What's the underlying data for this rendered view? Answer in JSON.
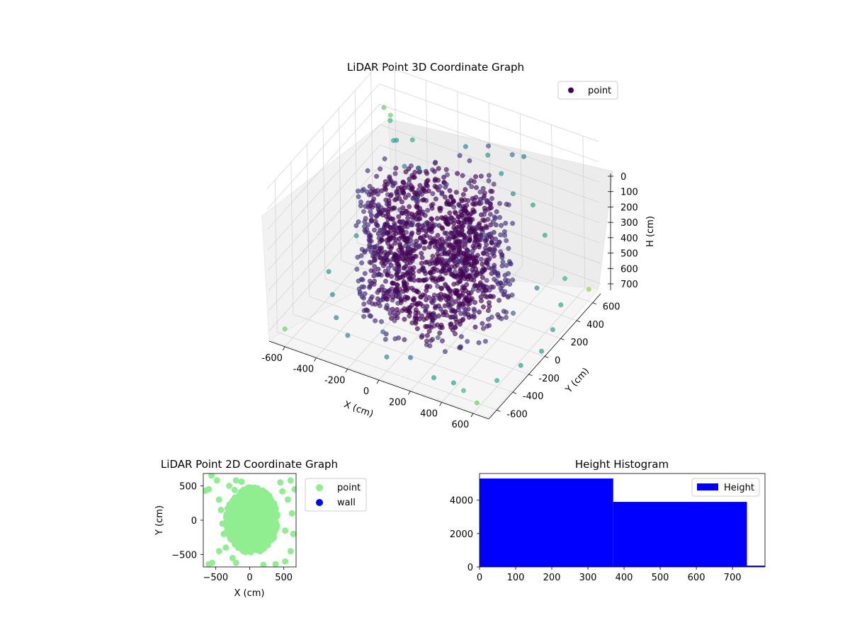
{
  "chart_data": [
    {
      "type": "scatter",
      "projection": "3d",
      "title": "LiDAR Point 3D Coordinate Graph",
      "xlabel": "X (cm)",
      "ylabel": "Y (cm)",
      "zlabel": "H (cm)",
      "xlim": [
        -700,
        700
      ],
      "ylim": [
        -700,
        700
      ],
      "zlim": [
        750,
        0
      ],
      "z_inverted": true,
      "x_ticks": [
        "-600",
        "-400",
        "-200",
        "0",
        "200",
        "400",
        "600"
      ],
      "y_ticks": [
        "-600",
        "-400",
        "-200",
        "0",
        "200",
        "400",
        "600"
      ],
      "z_ticks": [
        "0",
        "100",
        "200",
        "300",
        "400",
        "500",
        "600",
        "700"
      ],
      "colormap": "viridis",
      "grid": true,
      "legend": {
        "placement": "upper right",
        "entries": [
          {
            "label": "point",
            "color": "#440154"
          }
        ]
      },
      "series": [
        {
          "name": "point",
          "description_of_shape": "dense spiral ring of points centered near origin spanning heights ~150-700 cm, with sparse scattered outliers",
          "core_ring": {
            "center_x": 0,
            "center_y": 0,
            "radius_range": [
              150,
              450
            ],
            "h_range": [
              150,
              700
            ]
          },
          "outliers": [
            {
              "x": -620,
              "y": 600,
              "h": 150
            },
            {
              "x": -600,
              "y": 640,
              "h": 200
            },
            {
              "x": -560,
              "y": 560,
              "h": 180
            },
            {
              "x": -520,
              "y": 520,
              "h": 250
            },
            {
              "x": -480,
              "y": 480,
              "h": 220
            },
            {
              "x": -440,
              "y": 600,
              "h": 260
            },
            {
              "x": -400,
              "y": 420,
              "h": 300
            },
            {
              "x": -350,
              "y": 500,
              "h": 330
            },
            {
              "x": -300,
              "y": 350,
              "h": 400
            },
            {
              "x": -250,
              "y": 200,
              "h": 450
            },
            {
              "x": -200,
              "y": -100,
              "h": 520
            },
            {
              "x": -150,
              "y": -300,
              "h": 600
            },
            {
              "x": -100,
              "y": -450,
              "h": 650
            },
            {
              "x": 0,
              "y": -600,
              "h": 680
            },
            {
              "x": 100,
              "y": -500,
              "h": 700
            },
            {
              "x": 200,
              "y": -350,
              "h": 640
            },
            {
              "x": 300,
              "y": -600,
              "h": 700
            },
            {
              "x": 400,
              "y": -550,
              "h": 720
            },
            {
              "x": 500,
              "y": -620,
              "h": 700
            },
            {
              "x": 600,
              "y": -400,
              "h": 720
            },
            {
              "x": 650,
              "y": -200,
              "h": 720
            },
            {
              "x": 680,
              "y": 0,
              "h": 730
            },
            {
              "x": 650,
              "y": 200,
              "h": 720
            },
            {
              "x": 600,
              "y": 400,
              "h": 700
            },
            {
              "x": 550,
              "y": 550,
              "h": 650
            },
            {
              "x": 400,
              "y": 600,
              "h": 500
            },
            {
              "x": 300,
              "y": 650,
              "h": 400
            },
            {
              "x": 200,
              "y": 600,
              "h": 350
            },
            {
              "x": 100,
              "y": 650,
              "h": 300
            },
            {
              "x": 0,
              "y": 680,
              "h": 250
            },
            {
              "x": -100,
              "y": 600,
              "h": 200
            },
            {
              "x": 250,
              "y": 500,
              "h": 100
            },
            {
              "x": 350,
              "y": 450,
              "h": 60
            },
            {
              "x": 150,
              "y": 400,
              "h": 40
            },
            {
              "x": -300,
              "y": -500,
              "h": 700
            },
            {
              "x": -450,
              "y": -350,
              "h": 720
            },
            {
              "x": -550,
              "y": -200,
              "h": 700
            },
            {
              "x": -650,
              "y": -50,
              "h": 680
            },
            {
              "x": -600,
              "y": 200,
              "h": 600
            },
            {
              "x": 500,
              "y": 300,
              "h": 600
            },
            {
              "x": 450,
              "y": 100,
              "h": 650
            },
            {
              "x": -50,
              "y": 300,
              "h": 500
            },
            {
              "x": 100,
              "y": -200,
              "h": 550
            },
            {
              "x": 250,
              "y": -100,
              "h": 600
            },
            {
              "x": -200,
              "y": 100,
              "h": 450
            },
            {
              "x": 600,
              "y": -650,
              "h": 720
            },
            {
              "x": -650,
              "y": -600,
              "h": 720
            },
            {
              "x": 650,
              "y": 650,
              "h": 720
            }
          ]
        }
      ]
    },
    {
      "type": "scatter",
      "title": "LiDAR Point 2D Coordinate Graph",
      "xlabel": "X (cm)",
      "ylabel": "Y (cm)",
      "xlim": [
        -680,
        680
      ],
      "ylim": [
        -680,
        680
      ],
      "x_ticks": [
        -500,
        0,
        500
      ],
      "y_ticks": [
        -500,
        0,
        500
      ],
      "legend": {
        "placement": "outside right",
        "entries": [
          {
            "label": "point",
            "color": "#90ee90"
          },
          {
            "label": "wall",
            "color": "#0000ff"
          }
        ]
      },
      "series": [
        {
          "name": "point",
          "color": "#90ee90",
          "core_blob": {
            "center_x": 30,
            "center_y": 0,
            "radius_x": 380,
            "radius_y": 480
          },
          "outliers": [
            {
              "x": -650,
              "y": 430
            },
            {
              "x": -600,
              "y": 450
            },
            {
              "x": -560,
              "y": 650
            },
            {
              "x": -450,
              "y": 300
            },
            {
              "x": -420,
              "y": 150
            },
            {
              "x": -400,
              "y": -50
            },
            {
              "x": -380,
              "y": -200
            },
            {
              "x": -350,
              "y": -400
            },
            {
              "x": -450,
              "y": -450
            },
            {
              "x": -550,
              "y": -620
            },
            {
              "x": -600,
              "y": -640
            },
            {
              "x": -200,
              "y": 580
            },
            {
              "x": -120,
              "y": 560
            },
            {
              "x": -220,
              "y": 440
            },
            {
              "x": -300,
              "y": 500
            },
            {
              "x": -250,
              "y": -550
            },
            {
              "x": -200,
              "y": -620
            },
            {
              "x": 450,
              "y": 550
            },
            {
              "x": 600,
              "y": 580
            },
            {
              "x": 560,
              "y": 300
            },
            {
              "x": 620,
              "y": 100
            },
            {
              "x": 640,
              "y": -200
            },
            {
              "x": 600,
              "y": -450
            },
            {
              "x": 520,
              "y": -600
            },
            {
              "x": 380,
              "y": -640
            },
            {
              "x": 200,
              "y": -650
            },
            {
              "x": 480,
              "y": 420
            },
            {
              "x": 520,
              "y": -150
            },
            {
              "x": -480,
              "y": 580
            },
            {
              "x": 660,
              "y": 450
            }
          ]
        },
        {
          "name": "wall",
          "color": "#0000ff",
          "points": []
        }
      ]
    },
    {
      "type": "bar",
      "title": "Height Histogram",
      "xlabel": "",
      "ylabel": "",
      "xlim": [
        0,
        790
      ],
      "ylim": [
        0,
        5600
      ],
      "x_ticks": [
        0,
        100,
        200,
        300,
        400,
        500,
        600,
        700
      ],
      "y_ticks": [
        0,
        2000,
        4000
      ],
      "legend": {
        "placement": "upper right",
        "entries": [
          {
            "label": "Height",
            "color": "#0000ff"
          }
        ]
      },
      "bins": [
        {
          "start": 0,
          "end": 370,
          "count": 5300
        },
        {
          "start": 370,
          "end": 740,
          "count": 3900
        },
        {
          "start": 740,
          "end": 790,
          "count": 80
        }
      ],
      "color": "#0000ff"
    }
  ]
}
